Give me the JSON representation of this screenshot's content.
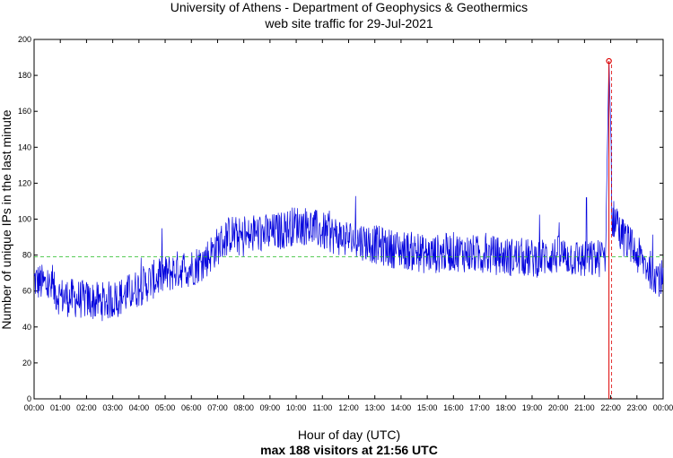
{
  "chart_data": {
    "type": "line",
    "title": "University of Athens - Department of Geophysics & Geothermics",
    "subtitle": "web site traffic for 29-Jul-2021",
    "xlabel": "Hour of day (UTC)",
    "ylabel": "Number of unique IPs in the last minute",
    "footer_note": "max 188 visitors at 21:56 UTC",
    "xlim": [
      0,
      24
    ],
    "ylim": [
      0,
      200
    ],
    "x_ticks": [
      "00:00",
      "01:00",
      "02:00",
      "03:00",
      "04:00",
      "05:00",
      "06:00",
      "07:00",
      "08:00",
      "09:00",
      "10:00",
      "11:00",
      "12:00",
      "13:00",
      "14:00",
      "15:00",
      "16:00",
      "17:00",
      "18:00",
      "19:00",
      "20:00",
      "21:00",
      "22:00",
      "23:00",
      "00:00"
    ],
    "y_ticks": [
      0,
      20,
      40,
      60,
      80,
      100,
      120,
      140,
      160,
      180,
      200
    ],
    "grid": true,
    "mean_value": 79,
    "max": {
      "hour": 21.933,
      "value": 188,
      "label": "21:56"
    },
    "series": [
      {
        "name": "visitors",
        "color": "#0000dd",
        "x": [
          0,
          0.5,
          1,
          1.5,
          2,
          2.5,
          3,
          3.5,
          4,
          4.5,
          5,
          5.5,
          6,
          6.5,
          7,
          7.5,
          8,
          8.5,
          9,
          9.5,
          10,
          10.5,
          11,
          11.5,
          12,
          12.5,
          13,
          13.5,
          14,
          14.5,
          15,
          15.5,
          16,
          16.5,
          17,
          17.5,
          18,
          18.5,
          19,
          19.5,
          20,
          20.5,
          21,
          21.5,
          21.8,
          21.933,
          22.1,
          22.5,
          23,
          23.5,
          24
        ],
        "values": [
          66,
          63,
          57,
          56,
          55,
          54,
          55,
          58,
          62,
          66,
          69,
          72,
          73,
          77,
          85,
          92,
          89,
          92,
          92,
          94,
          97,
          96,
          93,
          91,
          89,
          88,
          86,
          84,
          83,
          82,
          80,
          81,
          82,
          81,
          80,
          80,
          79,
          79,
          78,
          79,
          80,
          79,
          77,
          78,
          80,
          188,
          96,
          90,
          80,
          72,
          66
        ]
      }
    ],
    "spike_marker_color": "#dd0000",
    "mean_line_color": "#22bb22"
  }
}
